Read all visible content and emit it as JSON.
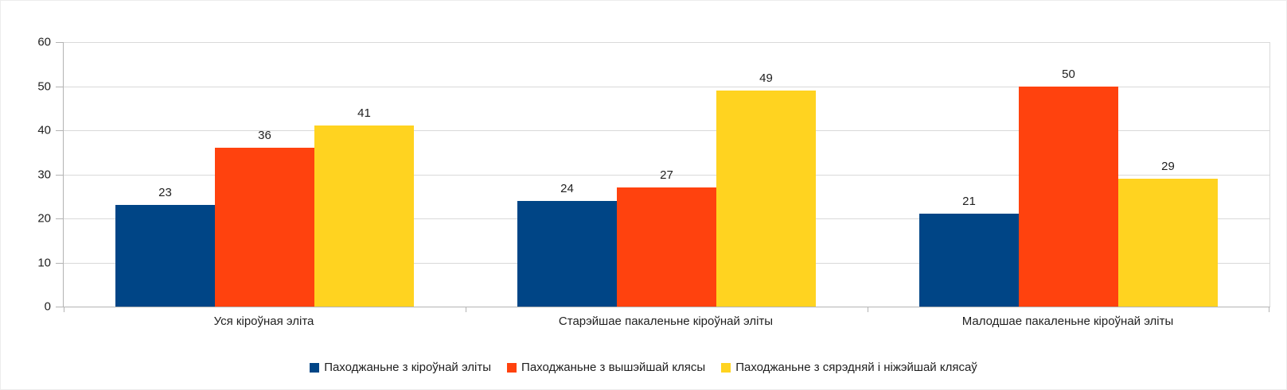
{
  "chart_data": {
    "type": "bar",
    "title": "",
    "xlabel": "",
    "ylabel": "",
    "categories": [
      "Уся кіроўная эліта",
      "Старэйшае пакаленьне кіроўнай эліты",
      "Малодшае пакаленьне кіроўнай эліты"
    ],
    "series": [
      {
        "name": "Паходжаньне з кіроўнай эліты",
        "color": "#004586",
        "values": [
          23,
          24,
          21
        ]
      },
      {
        "name": "Паходжаньне з вышэйшай клясы",
        "color": "#FF420E",
        "values": [
          36,
          27,
          50
        ]
      },
      {
        "name": "Паходжаньне з сярэдняй і ніжэйшай клясаў",
        "color": "#FFD320",
        "values": [
          41,
          49,
          29
        ]
      }
    ],
    "ylim": [
      0,
      60
    ],
    "ytick_step": 10,
    "ytick_labels": [
      "0",
      "10",
      "20",
      "30",
      "40",
      "50",
      "60"
    ],
    "grid": true,
    "data_labels": true,
    "legend_position": "bottom"
  },
  "colors": {
    "background": "#ffffff",
    "gridline": "#d9d9d9",
    "axis": "#b3b3b3",
    "text": "#1f1f1f"
  }
}
